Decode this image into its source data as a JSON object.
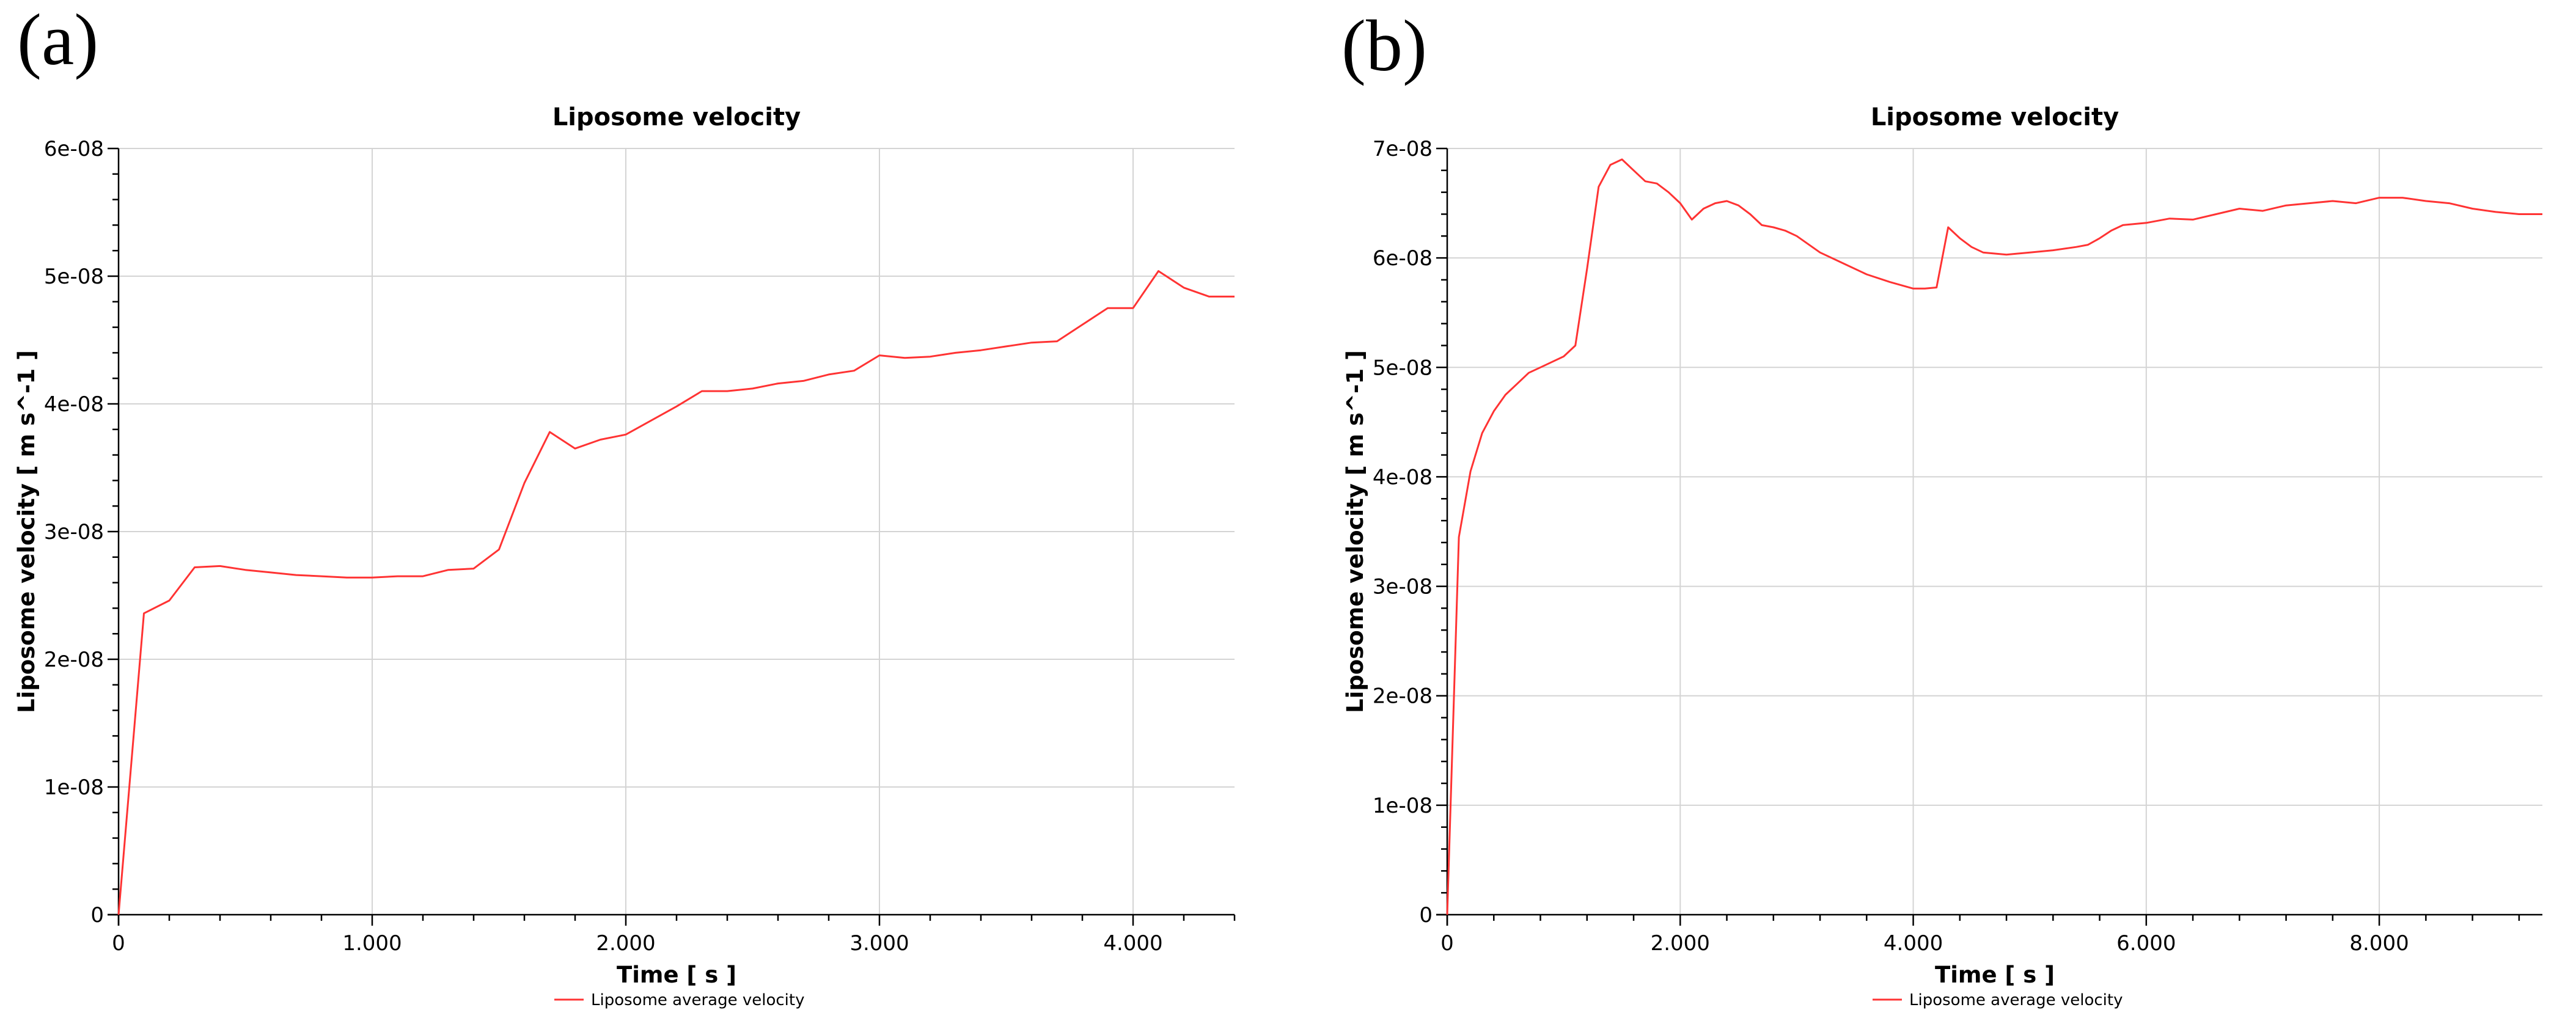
{
  "chart_data": [
    {
      "panel": "(a)",
      "type": "line",
      "title": "Liposome velocity",
      "xlabel": "Time [ s ]",
      "ylabel": "Liposome velocity [ m s^-1 ]",
      "xlim": [
        0,
        4.4
      ],
      "ylim": [
        0,
        6e-08
      ],
      "xticks": [
        0,
        1,
        2,
        3,
        4
      ],
      "xtick_labels": [
        "0",
        "1.000",
        "2.000",
        "3.000",
        "4.000"
      ],
      "yticks": [
        0,
        1e-08,
        2e-08,
        3e-08,
        4e-08,
        5e-08,
        6e-08
      ],
      "ytick_labels": [
        "0",
        "1e-08",
        "2e-08",
        "3e-08",
        "4e-08",
        "5e-08",
        "6e-08"
      ],
      "grid": true,
      "legend": "bottom-center",
      "series": [
        {
          "name": "Liposome average velocity",
          "color": "#ff3333",
          "x": [
            0,
            0.1,
            0.2,
            0.3,
            0.4,
            0.5,
            0.6,
            0.7,
            0.8,
            0.9,
            1.0,
            1.1,
            1.2,
            1.3,
            1.4,
            1.5,
            1.6,
            1.7,
            1.8,
            1.9,
            2.0,
            2.1,
            2.2,
            2.3,
            2.4,
            2.5,
            2.6,
            2.7,
            2.8,
            2.9,
            3.0,
            3.1,
            3.2,
            3.3,
            3.4,
            3.5,
            3.6,
            3.7,
            3.8,
            3.9,
            4.0,
            4.1,
            4.2,
            4.3,
            4.4
          ],
          "y": [
            0,
            2.36e-08,
            2.46e-08,
            2.72e-08,
            2.73e-08,
            2.7e-08,
            2.68e-08,
            2.66e-08,
            2.65e-08,
            2.64e-08,
            2.64e-08,
            2.65e-08,
            2.65e-08,
            2.7e-08,
            2.71e-08,
            2.86e-08,
            3.38e-08,
            3.78e-08,
            3.65e-08,
            3.72e-08,
            3.76e-08,
            3.87e-08,
            3.98e-08,
            4.1e-08,
            4.1e-08,
            4.12e-08,
            4.16e-08,
            4.18e-08,
            4.23e-08,
            4.26e-08,
            4.38e-08,
            4.36e-08,
            4.37e-08,
            4.4e-08,
            4.42e-08,
            4.45e-08,
            4.48e-08,
            4.49e-08,
            4.62e-08,
            4.75e-08,
            4.75e-08,
            5.04e-08,
            4.91e-08,
            4.84e-08,
            4.84e-08
          ]
        }
      ]
    },
    {
      "panel": "(b)",
      "type": "line",
      "title": "Liposome velocity",
      "xlabel": "Time [ s ]",
      "ylabel": "Liposome velocity [ m s^-1 ]",
      "xlim": [
        0,
        9.4
      ],
      "ylim": [
        0,
        7e-08
      ],
      "xticks": [
        0,
        2,
        4,
        6,
        8
      ],
      "xtick_labels": [
        "0",
        "2.000",
        "4.000",
        "6.000",
        "8.000"
      ],
      "yticks": [
        0,
        1e-08,
        2e-08,
        3e-08,
        4e-08,
        5e-08,
        6e-08,
        7e-08
      ],
      "ytick_labels": [
        "0",
        "1e-08",
        "2e-08",
        "3e-08",
        "4e-08",
        "5e-08",
        "6e-08",
        "7e-08"
      ],
      "grid": true,
      "legend": "bottom-center",
      "series": [
        {
          "name": "Liposome average velocity",
          "color": "#ff3333",
          "x": [
            0,
            0.1,
            0.2,
            0.3,
            0.4,
            0.5,
            0.6,
            0.7,
            0.8,
            0.9,
            1.0,
            1.1,
            1.2,
            1.3,
            1.4,
            1.5,
            1.6,
            1.7,
            1.8,
            1.9,
            2.0,
            2.1,
            2.2,
            2.3,
            2.4,
            2.5,
            2.6,
            2.7,
            2.8,
            2.9,
            3.0,
            3.2,
            3.4,
            3.6,
            3.8,
            4.0,
            4.1,
            4.2,
            4.3,
            4.4,
            4.5,
            4.6,
            4.8,
            5.0,
            5.2,
            5.4,
            5.5,
            5.6,
            5.7,
            5.8,
            6.0,
            6.2,
            6.4,
            6.6,
            6.8,
            7.0,
            7.2,
            7.4,
            7.6,
            7.8,
            8.0,
            8.2,
            8.4,
            8.6,
            8.8,
            9.0,
            9.2,
            9.4
          ],
          "y": [
            0,
            3.45e-08,
            4.05e-08,
            4.4e-08,
            4.6e-08,
            4.75e-08,
            4.85e-08,
            4.95e-08,
            5e-08,
            5.05e-08,
            5.1e-08,
            5.2e-08,
            5.9e-08,
            6.65e-08,
            6.85e-08,
            6.9e-08,
            6.8e-08,
            6.7e-08,
            6.68e-08,
            6.6e-08,
            6.5e-08,
            6.35e-08,
            6.45e-08,
            6.5e-08,
            6.52e-08,
            6.48e-08,
            6.4e-08,
            6.3e-08,
            6.28e-08,
            6.25e-08,
            6.2e-08,
            6.05e-08,
            5.95e-08,
            5.85e-08,
            5.78e-08,
            5.72e-08,
            5.72e-08,
            5.73e-08,
            6.28e-08,
            6.18e-08,
            6.1e-08,
            6.05e-08,
            6.03e-08,
            6.05e-08,
            6.07e-08,
            6.1e-08,
            6.12e-08,
            6.18e-08,
            6.25e-08,
            6.3e-08,
            6.32e-08,
            6.36e-08,
            6.35e-08,
            6.4e-08,
            6.45e-08,
            6.43e-08,
            6.48e-08,
            6.5e-08,
            6.52e-08,
            6.5e-08,
            6.55e-08,
            6.55e-08,
            6.52e-08,
            6.5e-08,
            6.45e-08,
            6.42e-08,
            6.4e-08,
            6.4e-08
          ]
        }
      ]
    }
  ]
}
